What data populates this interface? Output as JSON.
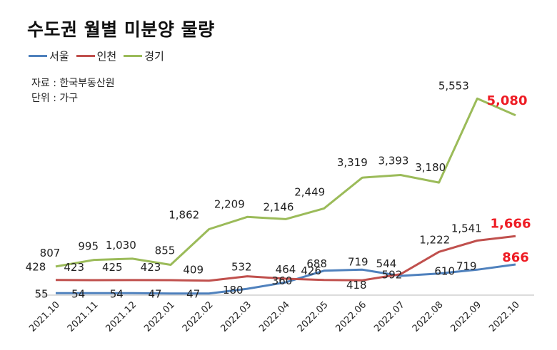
{
  "chart_data": {
    "type": "line",
    "title": "수도권 월별 미분양 물량",
    "source": "자료 : 한국부동산원",
    "unit": "단위 : 가구",
    "categories": [
      "2021.10",
      "2021.11",
      "2021.12",
      "2022.01",
      "2022.02",
      "2022.03",
      "2022.04",
      "2022.05",
      "2022.06",
      "2022.07",
      "2022.08",
      "2022.09",
      "2022.10"
    ],
    "series": [
      {
        "name": "서울",
        "color": "#4f81bd",
        "values": [
          55,
          54,
          54,
          47,
          47,
          180,
          360,
          688,
          719,
          544,
          610,
          719,
          866
        ],
        "labels": [
          "55",
          "54",
          "54",
          "47",
          "47",
          "180",
          "360",
          "688",
          "719",
          "544",
          "610",
          "719",
          "866"
        ]
      },
      {
        "name": "인천",
        "color": "#c0504d",
        "values": [
          428,
          423,
          425,
          423,
          409,
          532,
          464,
          426,
          418,
          592,
          1222,
          1541,
          1666
        ],
        "labels": [
          "428",
          "423",
          "425",
          "423",
          "409",
          "532",
          "464",
          "426",
          "418",
          "592",
          "1,222",
          "1,541",
          "1,666"
        ]
      },
      {
        "name": "경기",
        "color": "#9bbb59",
        "values": [
          807,
          995,
          1030,
          855,
          1862,
          2209,
          2146,
          2449,
          3319,
          3393,
          3180,
          5553,
          5080
        ],
        "labels": [
          "807",
          "995",
          "1,030",
          "855",
          "1,862",
          "2,209",
          "2,146",
          "2,449",
          "3,319",
          "3,393",
          "3,180",
          "5,553",
          "5,080"
        ]
      }
    ],
    "highlight_color": "#ee1c24",
    "ylim": [
      0,
      5800
    ],
    "grid": false,
    "legend_position": "top-left"
  }
}
